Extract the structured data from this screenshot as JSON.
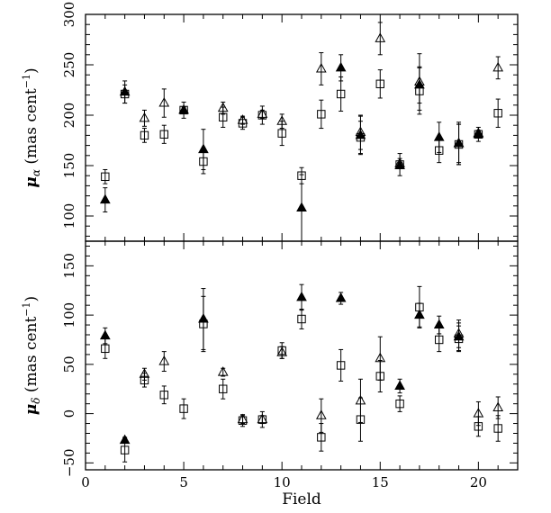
{
  "chart_data": [
    {
      "type": "scatter",
      "panel": "top",
      "ylabel_symbol": "μ",
      "ylabel_subscript": "α",
      "ylabel_unit": " (mas cent",
      "ylabel_exp": "−1",
      "ylabel_close": ")",
      "xlim": [
        0,
        22
      ],
      "ylim": [
        75,
        300
      ],
      "yticks": [
        100,
        150,
        200,
        250,
        300
      ],
      "xticks": [
        0,
        5,
        10,
        15,
        20
      ],
      "x_tick_labels_shown": false,
      "series": [
        {
          "marker": "open-square",
          "points": [
            {
              "x": 1,
              "y": 139,
              "err": 7
            },
            {
              "x": 2,
              "y": 221,
              "err": 9
            },
            {
              "x": 3,
              "y": 180,
              "err": 7
            },
            {
              "x": 4,
              "y": 181,
              "err": 9
            },
            {
              "x": 5,
              "y": 205,
              "err": 8
            },
            {
              "x": 6,
              "y": 154,
              "err": 12
            },
            {
              "x": 7,
              "y": 198,
              "err": 10
            },
            {
              "x": 8,
              "y": 192,
              "err": 6
            },
            {
              "x": 9,
              "y": 200,
              "err": 9
            },
            {
              "x": 10,
              "y": 182,
              "err": 12
            },
            {
              "x": 11,
              "y": 140,
              "err": 8
            },
            {
              "x": 12,
              "y": 201,
              "err": 14
            },
            {
              "x": 13,
              "y": 221,
              "err": 17
            },
            {
              "x": 14,
              "y": 178,
              "err": 16
            },
            {
              "x": 15,
              "y": 231,
              "err": 14
            },
            {
              "x": 16,
              "y": 151,
              "err": 11
            },
            {
              "x": 17,
              "y": 224,
              "err": 23
            },
            {
              "x": 18,
              "y": 165,
              "err": 12
            },
            {
              "x": 19,
              "y": 171,
              "err": 20
            },
            {
              "x": 20,
              "y": 181,
              "err": 7
            },
            {
              "x": 21,
              "y": 202,
              "err": 14
            }
          ]
        },
        {
          "marker": "open-triangle",
          "points": [
            {
              "x": 3,
              "y": 197,
              "err": 8
            },
            {
              "x": 4,
              "y": 212,
              "err": 14
            },
            {
              "x": 7,
              "y": 207,
              "err": 6
            },
            {
              "x": 8,
              "y": 195,
              "err": 4
            },
            {
              "x": 9,
              "y": 201,
              "err": 4
            },
            {
              "x": 10,
              "y": 194,
              "err": 7
            },
            {
              "x": 12,
              "y": 246,
              "err": 16
            },
            {
              "x": 14,
              "y": 183,
              "err": 17
            },
            {
              "x": 15,
              "y": 276,
              "err": 16
            },
            {
              "x": 16,
              "y": 152,
              "err": 5
            },
            {
              "x": 17,
              "y": 233,
              "err": 28
            },
            {
              "x": 19,
              "y": 172,
              "err": 21
            },
            {
              "x": 20,
              "y": 182,
              "err": 3
            },
            {
              "x": 21,
              "y": 247,
              "err": 11
            }
          ]
        },
        {
          "marker": "filled-triangle",
          "points": [
            {
              "x": 1,
              "y": 116,
              "err": 12
            },
            {
              "x": 2,
              "y": 223,
              "err": 11
            },
            {
              "x": 5,
              "y": 205,
              "err": 3
            },
            {
              "x": 6,
              "y": 166,
              "err": 20
            },
            {
              "x": 11,
              "y": 108,
              "err": 33
            },
            {
              "x": 13,
              "y": 247,
              "err": 13
            },
            {
              "x": 14,
              "y": 180,
              "err": 19
            },
            {
              "x": 16,
              "y": 150,
              "err": 3
            },
            {
              "x": 17,
              "y": 230,
              "err": 18
            },
            {
              "x": 18,
              "y": 178,
              "err": 15
            },
            {
              "x": 19,
              "y": 172,
              "err": 19
            },
            {
              "x": 20,
              "y": 181,
              "err": 3
            }
          ]
        }
      ]
    },
    {
      "type": "scatter",
      "panel": "bottom",
      "ylabel_symbol": "μ",
      "ylabel_subscript": "δ",
      "ylabel_unit": " (mas cent",
      "ylabel_exp": "−1",
      "ylabel_close": ")",
      "xlabel": "Field",
      "xlim": [
        0,
        22
      ],
      "ylim": [
        -57,
        175
      ],
      "yticks": [
        -50,
        0,
        50,
        100,
        150
      ],
      "xticks": [
        0,
        5,
        10,
        15,
        20
      ],
      "x_tick_labels_shown": true,
      "series": [
        {
          "marker": "open-square",
          "points": [
            {
              "x": 1,
              "y": 66,
              "err": 10
            },
            {
              "x": 2,
              "y": -37,
              "err": 12
            },
            {
              "x": 3,
              "y": 34,
              "err": 7
            },
            {
              "x": 4,
              "y": 19,
              "err": 9
            },
            {
              "x": 5,
              "y": 5,
              "err": 10
            },
            {
              "x": 6,
              "y": 91,
              "err": 28
            },
            {
              "x": 7,
              "y": 25,
              "err": 10
            },
            {
              "x": 8,
              "y": -7,
              "err": 6
            },
            {
              "x": 9,
              "y": -6,
              "err": 8
            },
            {
              "x": 10,
              "y": 64,
              "err": 8
            },
            {
              "x": 11,
              "y": 96,
              "err": 10
            },
            {
              "x": 12,
              "y": -24,
              "err": 14
            },
            {
              "x": 13,
              "y": 49,
              "err": 16
            },
            {
              "x": 14,
              "y": -6,
              "err": 22
            },
            {
              "x": 15,
              "y": 38,
              "err": 16
            },
            {
              "x": 16,
              "y": 10,
              "err": 8
            },
            {
              "x": 17,
              "y": 108,
              "err": 21
            },
            {
              "x": 18,
              "y": 75,
              "err": 12
            },
            {
              "x": 19,
              "y": 76,
              "err": 13
            },
            {
              "x": 20,
              "y": -13,
              "err": 10
            },
            {
              "x": 21,
              "y": -15,
              "err": 13
            }
          ]
        },
        {
          "marker": "open-triangle",
          "points": [
            {
              "x": 3,
              "y": 40,
              "err": 6
            },
            {
              "x": 4,
              "y": 53,
              "err": 10
            },
            {
              "x": 7,
              "y": 42,
              "err": 4
            },
            {
              "x": 8,
              "y": -6,
              "err": 4
            },
            {
              "x": 9,
              "y": -6,
              "err": 4
            },
            {
              "x": 10,
              "y": 62,
              "err": 6
            },
            {
              "x": 12,
              "y": -2,
              "err": 17
            },
            {
              "x": 14,
              "y": 13,
              "err": 22
            },
            {
              "x": 15,
              "y": 56,
              "err": 22
            },
            {
              "x": 19,
              "y": 81,
              "err": 14
            },
            {
              "x": 20,
              "y": 0,
              "err": 12
            },
            {
              "x": 21,
              "y": 6,
              "err": 11
            }
          ]
        },
        {
          "marker": "filled-triangle",
          "points": [
            {
              "x": 1,
              "y": 79,
              "err": 8
            },
            {
              "x": 2,
              "y": -27,
              "err": 3
            },
            {
              "x": 6,
              "y": 96,
              "err": 31
            },
            {
              "x": 11,
              "y": 118,
              "err": 13
            },
            {
              "x": 13,
              "y": 117,
              "err": 6
            },
            {
              "x": 16,
              "y": 28,
              "err": 7
            },
            {
              "x": 17,
              "y": 100,
              "err": 12
            },
            {
              "x": 18,
              "y": 90,
              "err": 9
            },
            {
              "x": 19,
              "y": 78,
              "err": 14
            }
          ]
        }
      ]
    }
  ]
}
